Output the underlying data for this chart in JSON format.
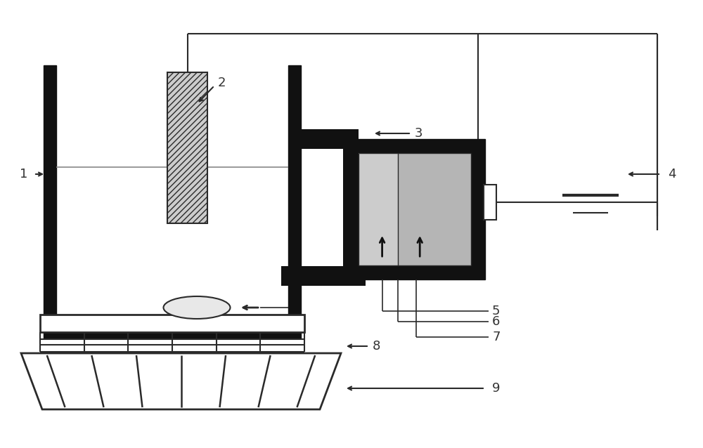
{
  "bg_color": "#ffffff",
  "line_color": "#2a2a2a",
  "dark_fill": "#111111",
  "light_gray": "#cccccc",
  "med_gray": "#aaaaaa",
  "dot_gray": "#b8b8b8",
  "white": "#ffffff"
}
